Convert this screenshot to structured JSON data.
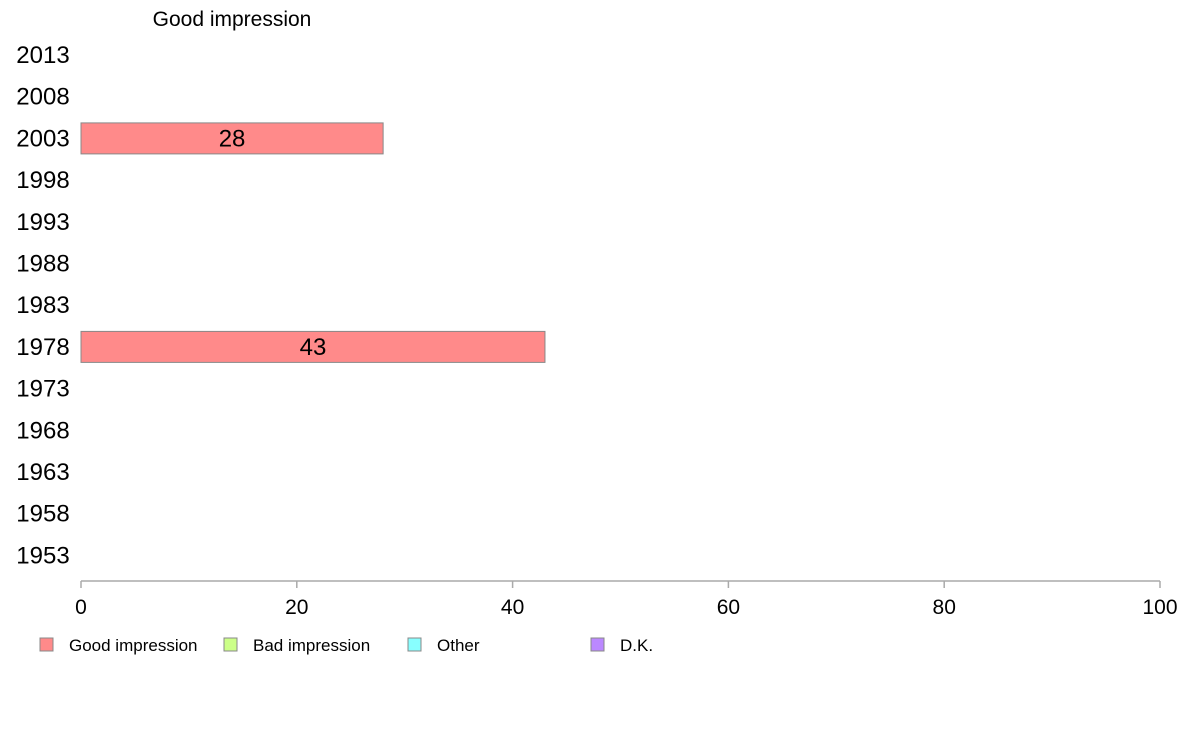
{
  "chart_data": {
    "type": "bar",
    "orientation": "horizontal",
    "title": "Good impression",
    "categories": [
      "2013",
      "2008",
      "2003",
      "1998",
      "1993",
      "1988",
      "1983",
      "1978",
      "1973",
      "1968",
      "1963",
      "1958",
      "1953"
    ],
    "series": [
      {
        "name": "Good impression",
        "color": "#ff8a8a",
        "values": [
          null,
          null,
          28,
          null,
          null,
          null,
          null,
          43,
          null,
          null,
          null,
          null,
          null
        ]
      }
    ],
    "xlim": [
      0,
      100
    ],
    "xticks": [
      "0",
      "20",
      "40",
      "60",
      "80",
      "100"
    ],
    "grid": false,
    "legend": {
      "placement": "bottom-left",
      "entries": [
        {
          "label": "Good impression",
          "color": "#ff8a8a"
        },
        {
          "label": "Bad impression",
          "color": "#ccff88"
        },
        {
          "label": "Other",
          "color": "#88ffff"
        },
        {
          "label": "D.K.",
          "color": "#bb88ff"
        }
      ]
    }
  }
}
